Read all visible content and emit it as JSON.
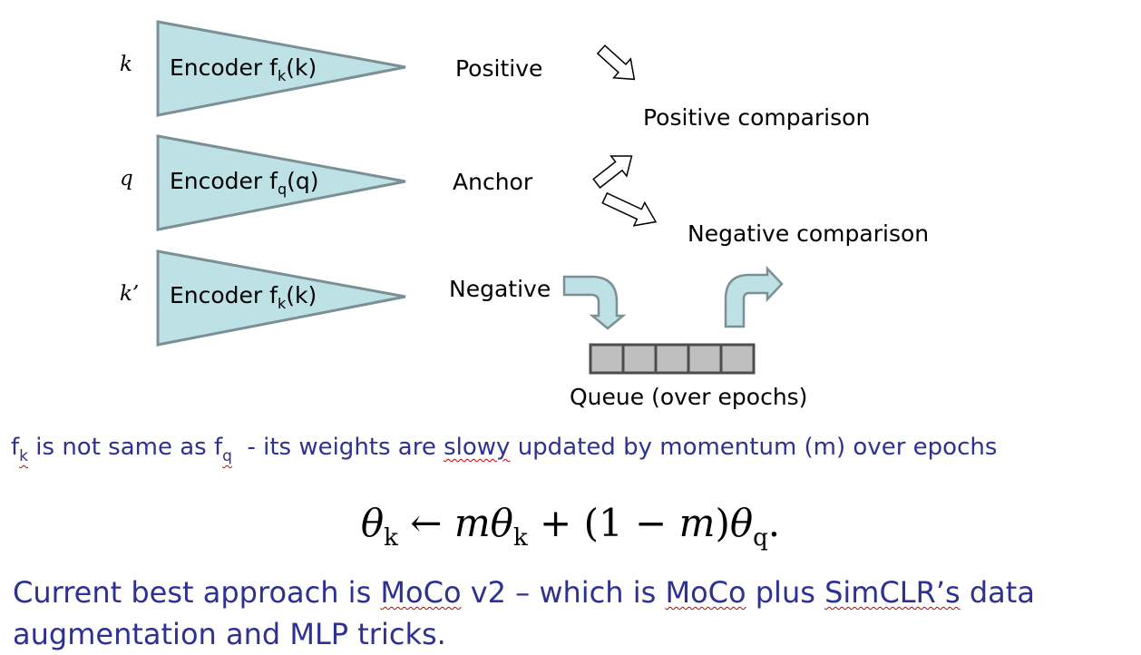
{
  "encoders": [
    {
      "var": "k",
      "name": "Encoder f",
      "sub": "k",
      "arg": "(k)",
      "role": "Positive"
    },
    {
      "var": "q",
      "name": "Encoder f",
      "sub": "q",
      "arg": "(q)",
      "role": "Anchor"
    },
    {
      "var": "k’",
      "name": "Encoder f",
      "sub": "k",
      "arg": "(k)",
      "role": "Negative"
    }
  ],
  "comparisons": {
    "positive": "Positive comparison",
    "negative": "Negative comparison"
  },
  "queue": {
    "label": "Queue (over epochs)",
    "slots": 5
  },
  "note": {
    "f_sym": "f",
    "f_sub_k": "k",
    "mid": " is not same as ",
    "f_sub_q": "q",
    "text_a": "  - its weights are ",
    "misspelled": "slowy",
    "text_b": " updated by momentum (m) over epochs"
  },
  "formula": {
    "theta": "θ",
    "k": "k",
    "arrow": " ← ",
    "m": "m",
    "plus": " + (1 − ",
    "close": ")",
    "q": "q",
    "end": "."
  },
  "summary": {
    "p1": "Current best approach is ",
    "moco1": "MoCo",
    "p2": " v2 – which is ",
    "moco2": "MoCo",
    "p3": " plus ",
    "simclr": "SimCLR’s",
    "p4": " data augmentation and MLP tricks."
  },
  "colors": {
    "encoder_fill": "#bde1e4",
    "encoder_stroke": "#7b9095",
    "queue_fill": "#bfbfbf",
    "queue_stroke": "#4d4d4d",
    "text_blue": "#2e3192"
  }
}
